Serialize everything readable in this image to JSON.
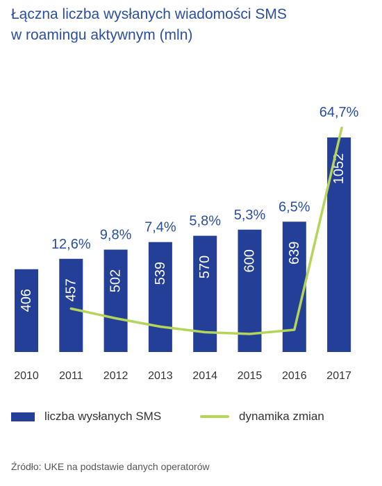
{
  "colors": {
    "bar": "#233f97",
    "line": "#b4d55a",
    "title": "#2a4ea0",
    "text": "#333333"
  },
  "chart_data": {
    "type": "bar",
    "title": "Łączna liczba wysłanych wiadomości SMS w roamingu aktywnym (mln)",
    "title_lines": [
      "Łączna liczba wysłanych wiadomości SMS",
      "w roamingu aktywnym (mln)"
    ],
    "categories": [
      "2010",
      "2011",
      "2012",
      "2013",
      "2014",
      "2015",
      "2016",
      "2017"
    ],
    "series": [
      {
        "name": "liczba wysłanych SMS",
        "type": "bar",
        "values": [
          406,
          457,
          502,
          539,
          570,
          600,
          639,
          1052
        ]
      },
      {
        "name": "dynamika zmian",
        "type": "line",
        "values": [
          null,
          12.6,
          9.8,
          7.4,
          5.8,
          5.3,
          6.5,
          64.7
        ],
        "labels": [
          null,
          "12,6%",
          "9,8%",
          "7,4%",
          "5,8%",
          "5,3%",
          "6,5%",
          "64,7%"
        ]
      }
    ],
    "legend": {
      "position": "bottom"
    },
    "grid": false
  },
  "source_text": "Źródło: UKE na podstawie danych operatorów"
}
